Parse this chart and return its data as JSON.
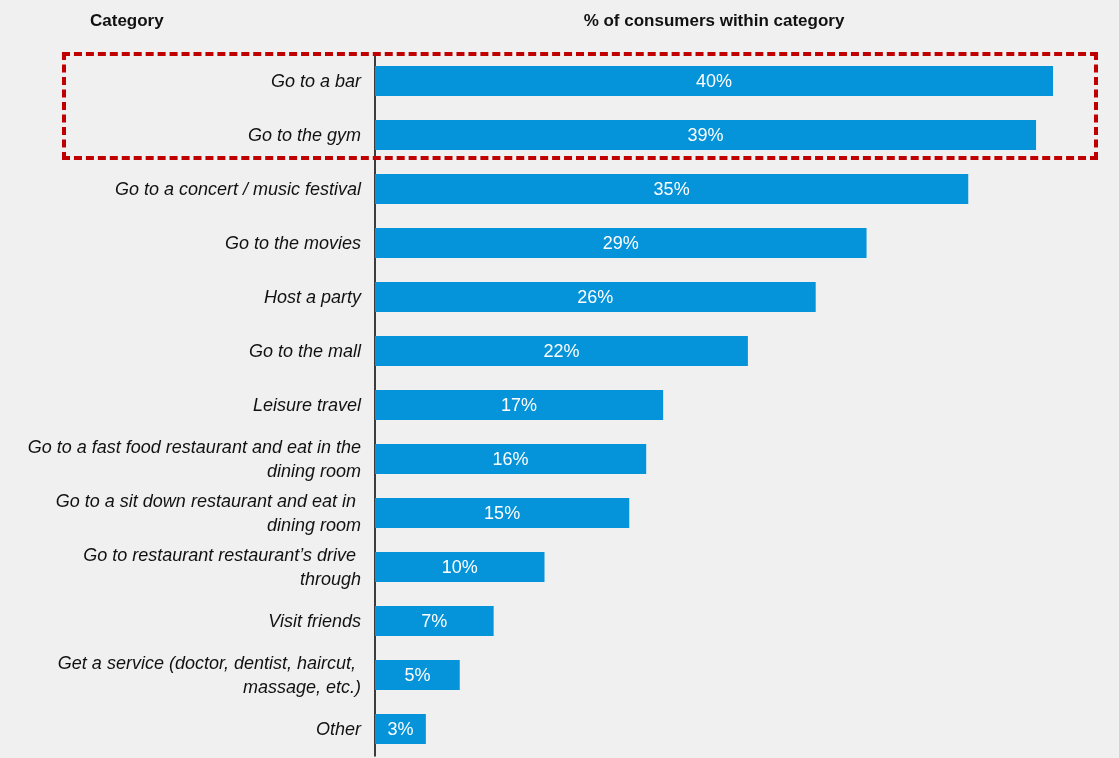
{
  "chart_data": {
    "type": "bar",
    "orientation": "horizontal",
    "xlabel": "% of consumers within category",
    "ylabel": "Category",
    "categories": [
      "Go to a bar",
      "Go to the gym",
      "Go to a concert / music festival",
      "Go to the movies",
      "Host a party",
      "Go to the mall",
      "Leisure travel",
      "Go to a fast food restaurant and eat in the dining room",
      "Go to a sit down restaurant and eat in dining room",
      "Go to restaurant restaurant’s drive through",
      "Visit friends",
      "Get a service (doctor, dentist, haircut, massage, etc.)",
      "Other"
    ],
    "values": [
      40,
      39,
      35,
      29,
      26,
      22,
      17,
      16,
      15,
      10,
      7,
      5,
      3
    ],
    "value_labels": [
      "40%",
      "39%",
      "35%",
      "29%",
      "26%",
      "22%",
      "17%",
      "16%",
      "15%",
      "10%",
      "7%",
      "5%",
      "3%"
    ],
    "color": "#0593d9",
    "tick_labels": "y",
    "grid": false
  }
}
